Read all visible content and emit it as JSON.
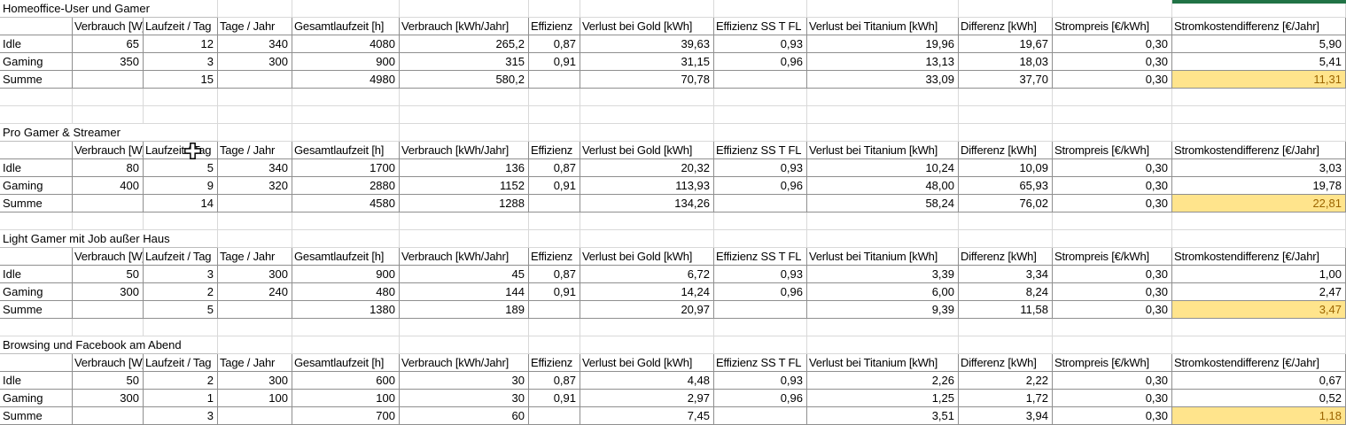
{
  "app": {
    "type": "spreadsheet-grid"
  },
  "colors": {
    "highlight_bg": "#FFE48C",
    "highlight_text": "#9C6500",
    "green_bar": "#217346",
    "table_border": "#8F8F8F",
    "gridline": "#D9D9D9"
  },
  "columns": [
    "",
    "Verbrauch [W]",
    "Laufzeit / Tag",
    "Tage / Jahr",
    "Gesamtlaufzeit [h]",
    "Verbrauch [kWh/Jahr]",
    "Effizienz",
    "Verlust bei Gold [kWh]",
    "Effizienz SS T FL",
    "Verlust bei Titanium [kWh]",
    "Differenz [kWh]",
    "Strompreis [€/kWh]",
    "Stromkostendifferenz [€/Jahr]"
  ],
  "tables": [
    {
      "title": "Homeoffice-User und Gamer",
      "rows": [
        {
          "label": "Idle",
          "cells": [
            "65",
            "12",
            "340",
            "4080",
            "265,2",
            "0,87",
            "39,63",
            "0,93",
            "19,96",
            "19,67",
            "0,30",
            "5,90"
          ]
        },
        {
          "label": "Gaming",
          "cells": [
            "350",
            "3",
            "300",
            "900",
            "315",
            "0,91",
            "31,15",
            "0,96",
            "13,13",
            "18,03",
            "0,30",
            "5,41"
          ]
        },
        {
          "label": "Summe",
          "cells": [
            "",
            "15",
            "",
            "4980",
            "580,2",
            "",
            "70,78",
            "",
            "33,09",
            "37,70",
            "0,30",
            "11,31"
          ]
        }
      ]
    },
    {
      "title": "Pro Gamer & Streamer",
      "rows": [
        {
          "label": "Idle",
          "cells": [
            "80",
            "5",
            "340",
            "1700",
            "136",
            "0,87",
            "20,32",
            "0,93",
            "10,24",
            "10,09",
            "0,30",
            "3,03"
          ]
        },
        {
          "label": "Gaming",
          "cells": [
            "400",
            "9",
            "320",
            "2880",
            "1152",
            "0,91",
            "113,93",
            "0,96",
            "48,00",
            "65,93",
            "0,30",
            "19,78"
          ]
        },
        {
          "label": "Summe",
          "cells": [
            "",
            "14",
            "",
            "4580",
            "1288",
            "",
            "134,26",
            "",
            "58,24",
            "76,02",
            "0,30",
            "22,81"
          ]
        }
      ]
    },
    {
      "title": "Light Gamer mit Job außer Haus",
      "rows": [
        {
          "label": "Idle",
          "cells": [
            "50",
            "3",
            "300",
            "900",
            "45",
            "0,87",
            "6,72",
            "0,93",
            "3,39",
            "3,34",
            "0,30",
            "1,00"
          ]
        },
        {
          "label": "Gaming",
          "cells": [
            "300",
            "2",
            "240",
            "480",
            "144",
            "0,91",
            "14,24",
            "0,96",
            "6,00",
            "8,24",
            "0,30",
            "2,47"
          ]
        },
        {
          "label": "Summe",
          "cells": [
            "",
            "5",
            "",
            "1380",
            "189",
            "",
            "20,97",
            "",
            "9,39",
            "11,58",
            "0,30",
            "3,47"
          ]
        }
      ]
    },
    {
      "title": "Browsing und Facebook am Abend",
      "rows": [
        {
          "label": "Idle",
          "cells": [
            "50",
            "2",
            "300",
            "600",
            "30",
            "0,87",
            "4,48",
            "0,93",
            "2,26",
            "2,22",
            "0,30",
            "0,67"
          ]
        },
        {
          "label": "Gaming",
          "cells": [
            "300",
            "1",
            "100",
            "100",
            "30",
            "0,91",
            "2,97",
            "0,96",
            "1,25",
            "1,72",
            "0,30",
            "0,52"
          ]
        },
        {
          "label": "Summe",
          "cells": [
            "",
            "3",
            "",
            "700",
            "60",
            "",
            "7,45",
            "",
            "3,51",
            "3,94",
            "0,30",
            "1,18"
          ]
        }
      ]
    }
  ],
  "cursor": {
    "icon": "excel-cell-cross-cursor"
  }
}
